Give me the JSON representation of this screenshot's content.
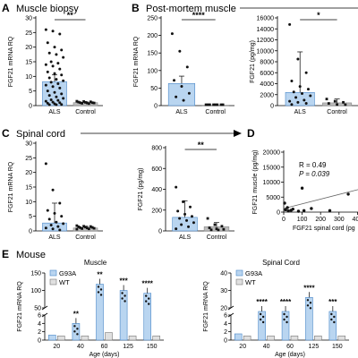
{
  "colors": {
    "bar_fill": "#b9d5f0",
    "bar_stroke": "#4a88c8",
    "ctrl_fill": "#bdbdbd",
    "dot": "#111111",
    "wt_fill": "#e0e0e0"
  },
  "panels": {
    "A": {
      "label": "A",
      "title": "Muscle biopsy"
    },
    "B": {
      "label": "B",
      "title": "Post-mortem muscle"
    },
    "C": {
      "label": "C",
      "title": "Spinal cord"
    },
    "D": {
      "label": "D"
    },
    "E": {
      "label": "E",
      "title": "Mouse"
    }
  },
  "chart_data": [
    {
      "id": "A",
      "type": "bar",
      "title": "Muscle biopsy",
      "ylabel": "FGF21 mRNA RQ",
      "categories": [
        "ALS",
        "Control"
      ],
      "values": [
        8.2,
        1.0
      ],
      "error_upper": [
        10.5,
        1.3
      ],
      "ylim": [
        0,
        30
      ],
      "yticks": [
        0,
        5,
        10,
        15,
        20,
        25,
        30
      ],
      "significance": "**",
      "points": [
        [
          26,
          25.5,
          24.5,
          21.5,
          20,
          19,
          18,
          17.5,
          16.5,
          15,
          14.5,
          14,
          13.5,
          12.5,
          11.5,
          11,
          10.5,
          9.5,
          9,
          8.5,
          8,
          7.5,
          7,
          6.5,
          6,
          5,
          4.5,
          4,
          3.5,
          3,
          2.5,
          2,
          1.8,
          1.5,
          1.2,
          1,
          0.8,
          0.6,
          0.4,
          0.2,
          0
        ],
        [
          1.5,
          1.4,
          1.3,
          1.2,
          1.1,
          1,
          1,
          0.9,
          0.9,
          0.8,
          0.7
        ]
      ]
    },
    {
      "id": "B1",
      "type": "bar",
      "ylabel": "FGF21 mRNA RQ",
      "categories": [
        "ALS",
        "Control"
      ],
      "values": [
        63,
        1
      ],
      "error_upper": [
        84,
        2
      ],
      "ylim": [
        0,
        250
      ],
      "yticks": [
        0,
        50,
        100,
        150,
        200,
        250
      ],
      "significance": "****",
      "points": [
        [
          205,
          155,
          110,
          72,
          55,
          35,
          25,
          15
        ],
        [
          2,
          1.5,
          1.2,
          1,
          0.8,
          0.6,
          0.5,
          0.3
        ]
      ]
    },
    {
      "id": "B2",
      "type": "bar",
      "ylabel": "FGF21 (pg/mg)",
      "categories": [
        "ALS",
        "Control"
      ],
      "values": [
        2400,
        500
      ],
      "error_upper": [
        9800,
        1200
      ],
      "ylim": [
        0,
        16000
      ],
      "yticks": [
        0,
        2000,
        4000,
        6000,
        8000,
        10000,
        12000,
        14000,
        16000
      ],
      "significance": "*",
      "points": [
        [
          14800,
          8500,
          6000,
          4500,
          3500,
          3000,
          2500,
          2200,
          1800,
          1500,
          1000,
          800,
          600,
          400,
          200
        ],
        [
          1200,
          800,
          600,
          400,
          200,
          100
        ]
      ]
    },
    {
      "id": "C1",
      "type": "bar",
      "ylabel": "FGF21 mRNA RQ",
      "categories": [
        "ALS",
        "Control"
      ],
      "values": [
        2.7,
        1.0
      ],
      "error_upper": [
        9.5,
        1.6
      ],
      "ylim": [
        0,
        30
      ],
      "yticks": [
        0,
        5,
        10,
        15,
        20,
        25,
        30
      ],
      "points": [
        [
          23,
          14,
          9.5,
          7,
          6,
          5,
          4,
          3,
          2.5,
          2,
          1.5,
          1,
          0.7,
          0.3
        ],
        [
          1.8,
          1.6,
          1.5,
          1.4,
          1.3,
          1.2,
          1.1,
          1,
          0.9,
          0.8,
          0.7,
          0.6
        ]
      ]
    },
    {
      "id": "C2",
      "type": "bar",
      "ylabel": "FGF21 (pg/mg)",
      "categories": [
        "ALS",
        "Control"
      ],
      "values": [
        130,
        40
      ],
      "error_upper": [
        290,
        80
      ],
      "ylim": [
        0,
        800
      ],
      "yticks": [
        0,
        200,
        400,
        600,
        800
      ],
      "significance": "**",
      "points": [
        [
          420,
          280,
          230,
          190,
          160,
          140,
          120,
          100,
          80,
          60,
          40,
          20
        ],
        [
          120,
          60,
          45,
          30,
          20,
          15,
          10,
          5
        ]
      ]
    },
    {
      "id": "D",
      "type": "scatter",
      "xlabel": "FGF21 spinal cord (pg",
      "ylabel": "FGF21 muscle (pg/mg)",
      "xticks": [
        0,
        100,
        200,
        300,
        400,
        "5"
      ],
      "yticks": [
        0,
        5000,
        10000,
        15000,
        20000
      ],
      "xlim": [
        0,
        500
      ],
      "ylim": [
        0,
        20000
      ],
      "stats": {
        "r": "R = 0.49",
        "p": "P = 0.039"
      },
      "points": [
        [
          5,
          3000
        ],
        [
          10,
          800
        ],
        [
          20,
          1500
        ],
        [
          25,
          400
        ],
        [
          40,
          600
        ],
        [
          50,
          1000
        ],
        [
          80,
          300
        ],
        [
          100,
          8000
        ],
        [
          110,
          500
        ],
        [
          150,
          1200
        ],
        [
          250,
          500
        ],
        [
          350,
          6000
        ],
        [
          450,
          7000
        ]
      ],
      "fit": [
        [
          0,
          1200
        ],
        [
          500,
          7500
        ]
      ]
    },
    {
      "id": "E1",
      "type": "bar",
      "title": "Muscle",
      "ylabel": "FGF21 mRNA RQ",
      "xlabel": "Age (days)",
      "categories": [
        "20",
        "40",
        "60",
        "125",
        "150"
      ],
      "ylim": [
        0,
        150
      ],
      "yticks": [
        0,
        2,
        4,
        6,
        50,
        100,
        150
      ],
      "axis_break": true,
      "series": [
        {
          "name": "G93A",
          "values": [
            1.2,
            4,
            118,
            100,
            92
          ],
          "stars": [
            "",
            "**",
            "**",
            "***",
            "****"
          ]
        },
        {
          "name": "WT",
          "values": [
            1,
            1,
            1.8,
            1,
            1
          ],
          "stars": [
            "",
            "",
            "",
            "",
            ""
          ]
        }
      ]
    },
    {
      "id": "E2",
      "type": "bar",
      "title": "Spinal Cord",
      "ylabel": "FGF21 mRNA RQ",
      "xlabel": "Age (days)",
      "categories": [
        "20",
        "40",
        "60",
        "125",
        "150"
      ],
      "ylim": [
        0,
        40
      ],
      "yticks": [
        0,
        2,
        4,
        6,
        20,
        30,
        40
      ],
      "axis_break": true,
      "series": [
        {
          "name": "G93A",
          "values": [
            1.5,
            18,
            17,
            26,
            16
          ],
          "stars": [
            "",
            "****",
            "****",
            "****",
            "***"
          ]
        },
        {
          "name": "WT",
          "values": [
            1,
            1,
            1,
            1,
            1
          ],
          "stars": [
            "",
            "",
            "",
            "",
            ""
          ]
        }
      ]
    }
  ]
}
